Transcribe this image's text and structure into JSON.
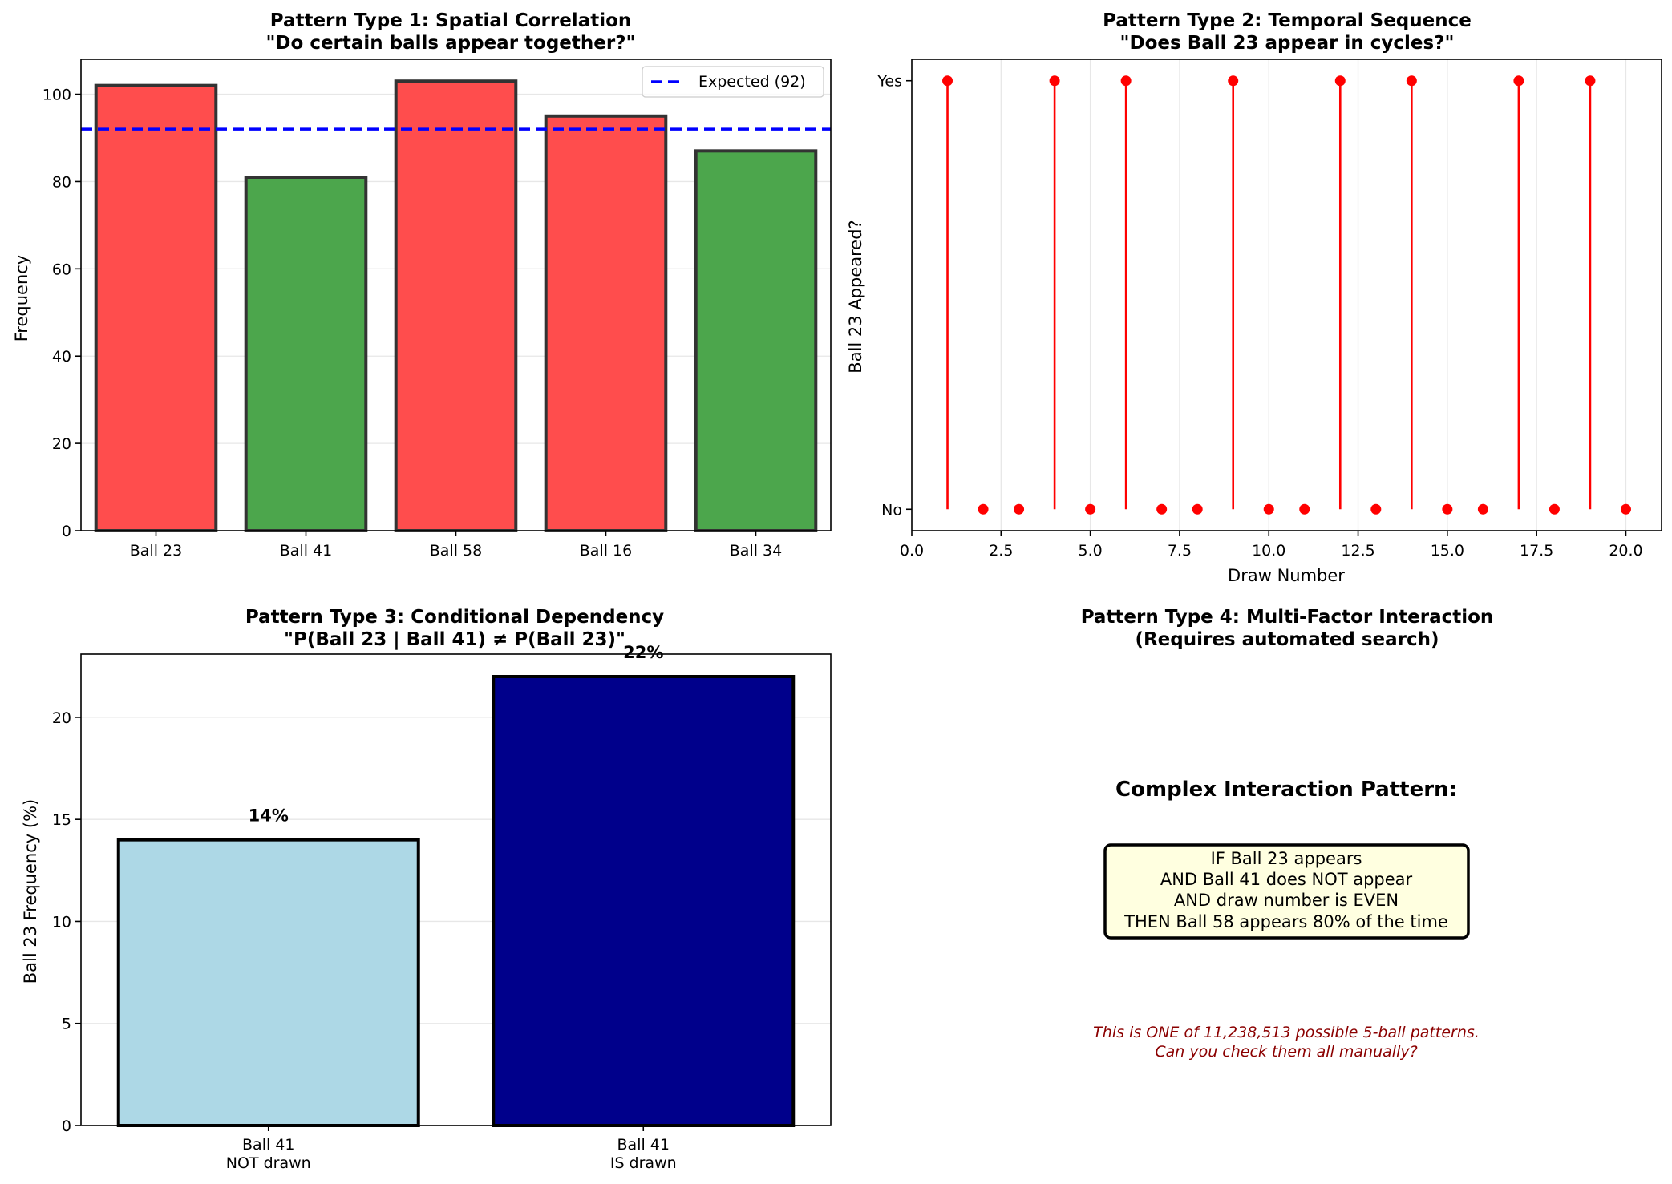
{
  "chart_data": [
    {
      "type": "bar",
      "title": "Pattern Type 1: Spatial Correlation",
      "subtitle": "\"Do certain balls appear together?\"",
      "categories": [
        "Ball 23",
        "Ball 41",
        "Ball 58",
        "Ball 16",
        "Ball 34"
      ],
      "values": [
        102,
        81,
        103,
        95,
        87
      ],
      "colors": [
        "#ff4d4d",
        "#4ca64c",
        "#ff4d4d",
        "#ff4d4d",
        "#4ca64c"
      ],
      "xlabel": "",
      "ylabel": "Frequency",
      "ylim": [
        0,
        108
      ],
      "yticks": [
        0,
        20,
        40,
        60,
        80,
        100
      ],
      "reference_line": {
        "value": 92,
        "label": "Expected (92)",
        "color": "#0000ff"
      },
      "legend": "top-right",
      "grid": "y"
    },
    {
      "type": "stem",
      "title": "Pattern Type 2: Temporal Sequence",
      "subtitle": "\"Does Ball 23 appear in cycles?\"",
      "x": [
        1,
        2,
        3,
        4,
        5,
        6,
        7,
        8,
        9,
        10,
        11,
        12,
        13,
        14,
        15,
        16,
        17,
        18,
        19,
        20
      ],
      "values": [
        1,
        0,
        0,
        1,
        0,
        1,
        0,
        0,
        1,
        0,
        0,
        1,
        0,
        1,
        0,
        0,
        1,
        0,
        1,
        0
      ],
      "xlabel": "Draw Number",
      "ylabel": "Ball 23 Appeared?",
      "xlim": [
        0,
        21
      ],
      "xticks": [
        "0.0",
        "2.5",
        "5.0",
        "7.5",
        "10.0",
        "12.5",
        "15.0",
        "17.5",
        "20.0"
      ],
      "ylim": [
        -0.05,
        1.05
      ],
      "ytick_labels": [
        "No",
        "Yes"
      ],
      "color": "#ff0000",
      "grid": "x"
    },
    {
      "type": "bar",
      "title": "Pattern Type 3: Conditional Dependency",
      "subtitle": "\"P(Ball 23 | Ball 41) ≠ P(Ball 23)\"",
      "categories": [
        [
          "Ball 41",
          "NOT drawn"
        ],
        [
          "Ball 41",
          "IS drawn"
        ]
      ],
      "values": [
        14,
        22
      ],
      "data_labels": [
        "14%",
        "22%"
      ],
      "colors": [
        "#add8e6",
        "#00008b"
      ],
      "xlabel": "",
      "ylabel": "Ball 23 Frequency (%)",
      "ylim": [
        0,
        23.1
      ],
      "yticks": [
        0,
        5,
        10,
        15,
        20
      ],
      "grid": "y"
    }
  ],
  "panel4": {
    "title": "Pattern Type 4: Multi-Factor Interaction",
    "subtitle": "(Requires automated search)",
    "heading": "Complex Interaction Pattern:",
    "box_lines": [
      "IF Ball 23 appears",
      "AND Ball 41 does NOT appear",
      "AND draw number is EVEN",
      "THEN Ball 58 appears 80% of the time"
    ],
    "box_fill": "#ffffe0",
    "note_lines": [
      "This is ONE of 11,238,513 possible 5-ball patterns.",
      "Can you check them all manually?"
    ],
    "note_color": "#8b0000"
  }
}
